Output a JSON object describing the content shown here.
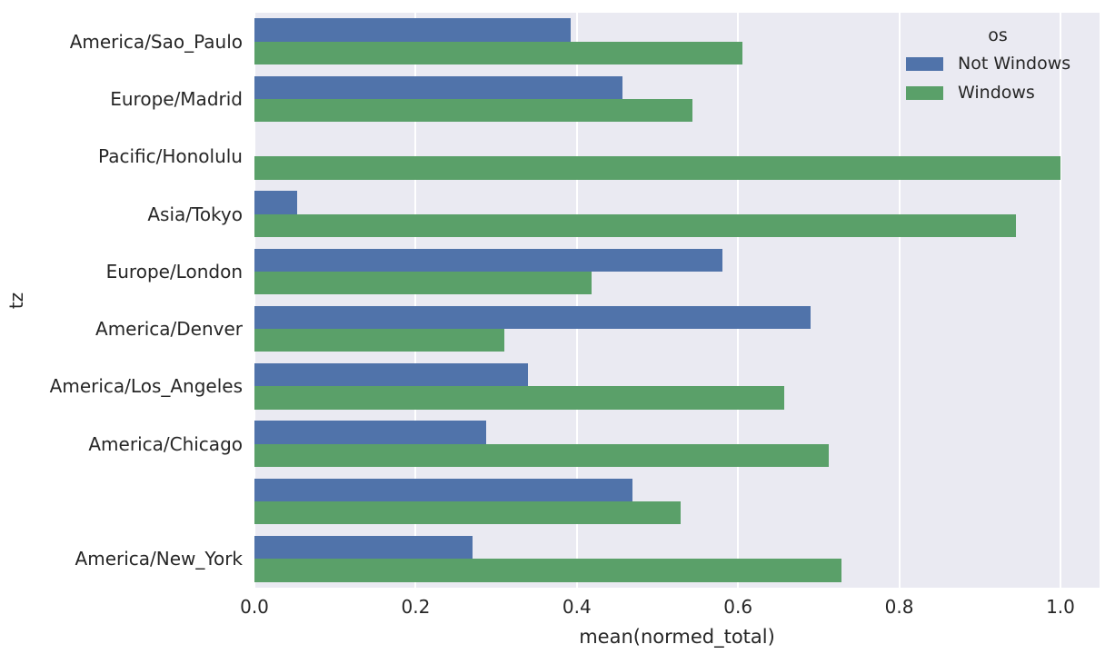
{
  "chart_data": {
    "type": "bar",
    "orientation": "horizontal",
    "title": "",
    "xlabel": "mean(normed_total)",
    "ylabel": "tz",
    "xlim": [
      0.0,
      1.0485
    ],
    "xticks": [
      0.0,
      0.2,
      0.4,
      0.6,
      0.8,
      1.0
    ],
    "grid": "vertical white gridlines on gray panel",
    "legend_position": "upper right inside plot",
    "categories": [
      "America/Sao_Paulo",
      "Europe/Madrid",
      "Pacific/Honolulu",
      "Asia/Tokyo",
      "Europe/London",
      "America/Denver",
      "America/Los_Angeles",
      "America/Chicago",
      "",
      "America/New_York"
    ],
    "series": [
      {
        "name": "Not Windows",
        "color": "#5073aa",
        "values": [
          0.392,
          0.457,
          0.0,
          0.053,
          0.581,
          0.69,
          0.339,
          0.287,
          0.469,
          0.271
        ]
      },
      {
        "name": "Windows",
        "color": "#5aa069",
        "values": [
          0.605,
          0.543,
          1.0,
          0.945,
          0.418,
          0.31,
          0.657,
          0.713,
          0.529,
          0.728
        ]
      }
    ],
    "legend": {
      "title": "os",
      "entries": [
        {
          "label": "Not Windows",
          "color": "#5073aa"
        },
        {
          "label": "Windows",
          "color": "#5aa069"
        }
      ]
    },
    "colors": {
      "figure_bg": "#ffffff",
      "plot_bg": "#eaeaf2",
      "grid": "#ffffff",
      "text": "#262626"
    }
  }
}
